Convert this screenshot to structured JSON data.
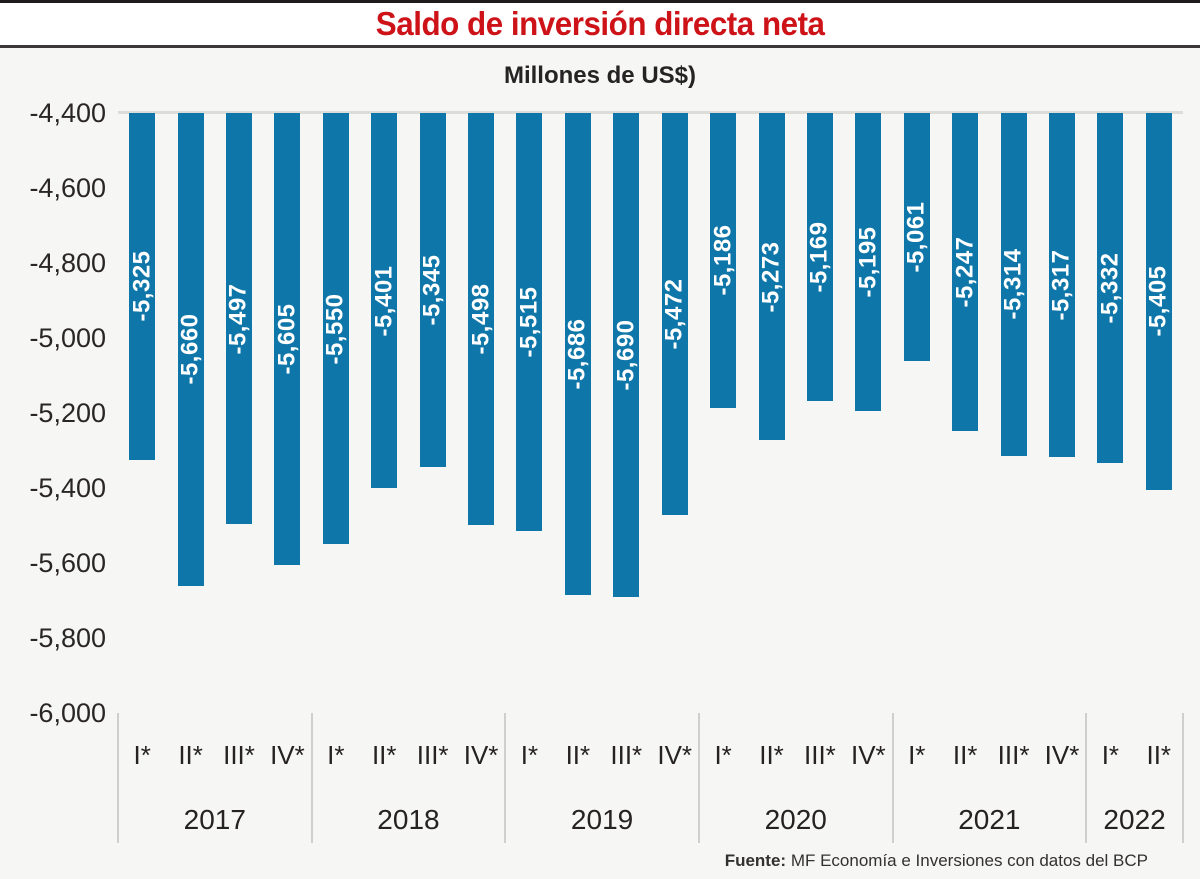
{
  "title": "Saldo de inversión directa neta",
  "subtitle": "Millones de US$)",
  "source": {
    "label": "Fuente:",
    "text": " MF Economía e Inversiones con datos del BCP"
  },
  "colors": {
    "bar": "#0e76a8",
    "bar_label": "#ffffff",
    "title": "#cd1218",
    "axis_text": "#2a2627",
    "baseline": "#dcdcd9",
    "separator": "#cfcfcd",
    "page_bg": "#f6f6f4",
    "header_bg": "#ffffff"
  },
  "chart_data": {
    "type": "bar",
    "title": "Saldo de inversión directa neta",
    "subtitle": "Millones de US$)",
    "xlabel": "",
    "ylabel": "",
    "ylim": [
      -6000,
      -4400
    ],
    "grid": false,
    "legend": "none",
    "bars_hang_from": -4400,
    "yticks": [
      -4400,
      -4600,
      -4800,
      -5000,
      -5200,
      -5400,
      -5600,
      -5800,
      -6000
    ],
    "ytick_labels": [
      "-4,400",
      "-4,600",
      "-4,800",
      "-5,000",
      "-5,200",
      "-5,400",
      "-5,600",
      "-5,800",
      "-6,000"
    ],
    "groups": [
      {
        "year": "2017",
        "quarters": [
          "I*",
          "II*",
          "III*",
          "IV*"
        ],
        "values": [
          -5325,
          -5660,
          -5497,
          -5605
        ],
        "value_labels": [
          "-5,325",
          "-5,660",
          "-5,497",
          "-5,605"
        ]
      },
      {
        "year": "2018",
        "quarters": [
          "I*",
          "II*",
          "III*",
          "IV*"
        ],
        "values": [
          -5550,
          -5401,
          -5345,
          -5498
        ],
        "value_labels": [
          "-5,550",
          "-5,401",
          "-5,345",
          "-5,498"
        ]
      },
      {
        "year": "2019",
        "quarters": [
          "I*",
          "II*",
          "III*",
          "IV*"
        ],
        "values": [
          -5515,
          -5686,
          -5690,
          -5472
        ],
        "value_labels": [
          "-5,515",
          "-5,686",
          "-5,690",
          "-5,472"
        ]
      },
      {
        "year": "2020",
        "quarters": [
          "I*",
          "II*",
          "III*",
          "IV*"
        ],
        "values": [
          -5186,
          -5273,
          -5169,
          -5195
        ],
        "value_labels": [
          "-5,186",
          "-5,273",
          "-5,169",
          "-5,195"
        ]
      },
      {
        "year": "2021",
        "quarters": [
          "I*",
          "II*",
          "III*",
          "IV*"
        ],
        "values": [
          -5061,
          -5247,
          -5314,
          -5317
        ],
        "value_labels": [
          "-5,061",
          "-5,247",
          "-5,314",
          "-5,317"
        ]
      },
      {
        "year": "2022",
        "quarters": [
          "I*",
          "II*"
        ],
        "values": [
          -5332,
          -5405
        ],
        "value_labels": [
          "-5,332",
          "-5,405"
        ]
      }
    ]
  }
}
